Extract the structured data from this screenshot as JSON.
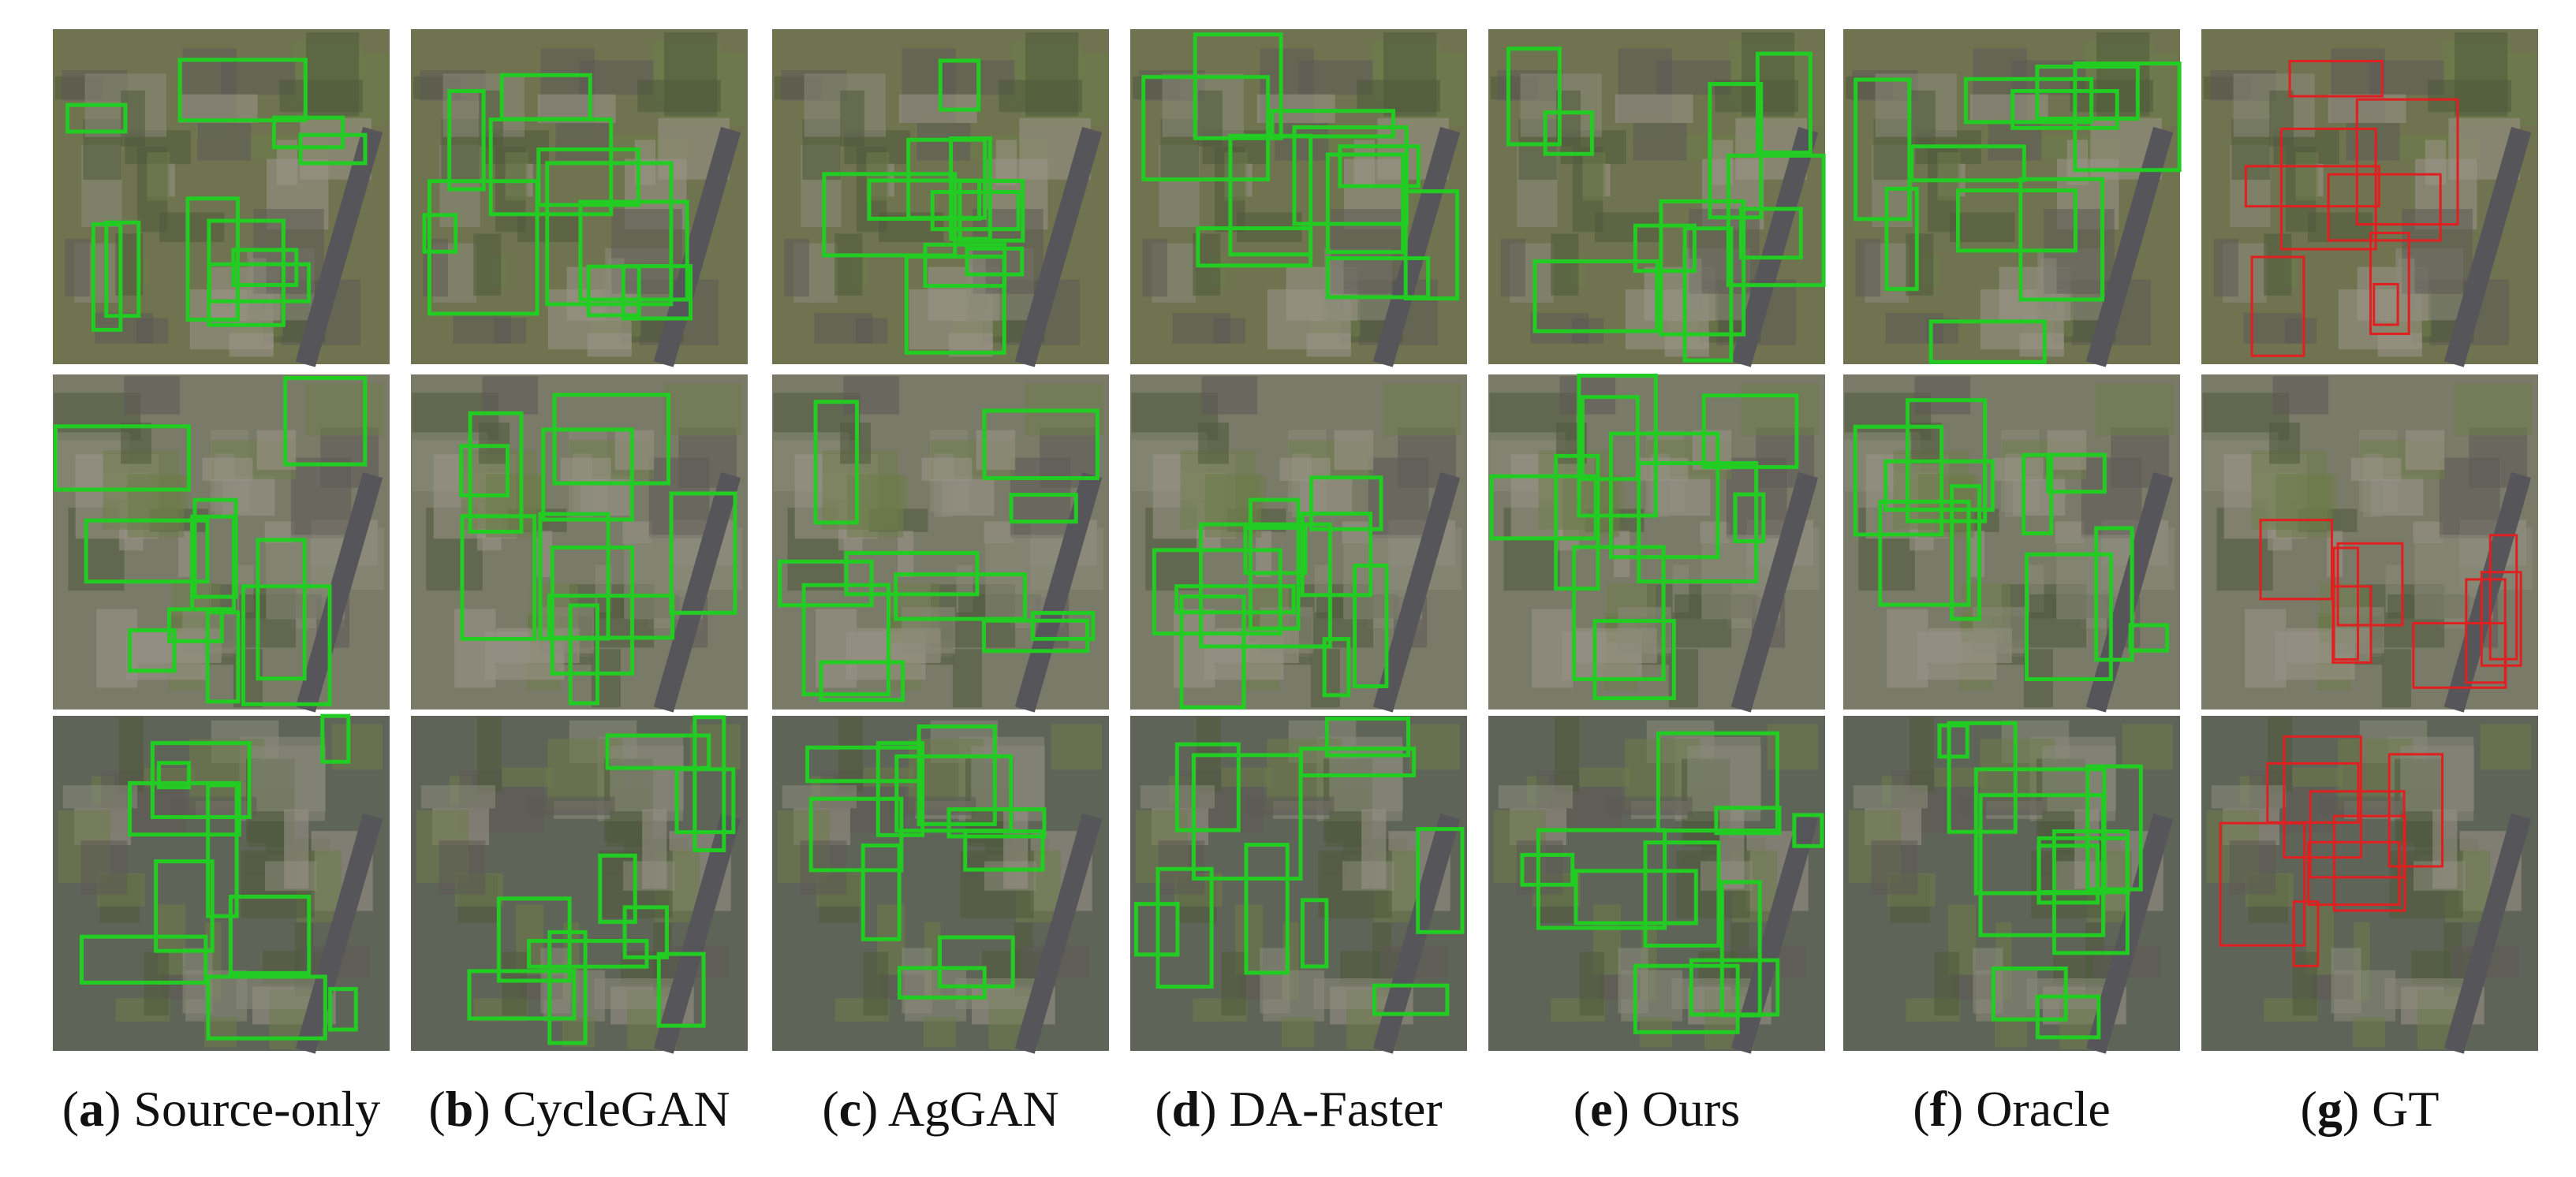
{
  "captions": [
    {
      "tag": "(a)",
      "label": "Source-only"
    },
    {
      "tag": "(b)",
      "label": "CycleGAN"
    },
    {
      "tag": "(c)",
      "label": "AgGAN"
    },
    {
      "tag": "(d)",
      "label": "DA-Faster"
    },
    {
      "tag": "(e)",
      "label": "Ours"
    },
    {
      "tag": "(f)",
      "label": "Oracle"
    },
    {
      "tag": "(g)",
      "label": "GT"
    }
  ]
}
